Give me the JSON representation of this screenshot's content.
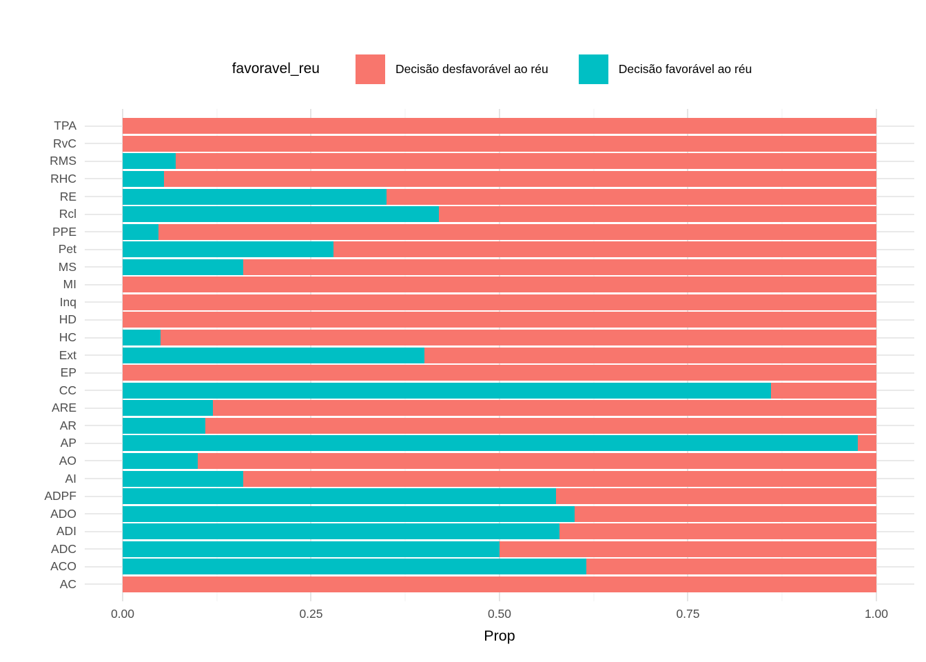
{
  "chart_data": {
    "type": "bar",
    "orientation": "horizontal",
    "stacked": true,
    "stack_is_proportion": true,
    "title": "",
    "xlabel": "Prop",
    "ylabel": "",
    "xlim": [
      0,
      1
    ],
    "grid": "on",
    "x_ticks": {
      "labels": [
        "0.00",
        "0.25",
        "0.50",
        "0.75",
        "1.00"
      ],
      "values": [
        0,
        0.25,
        0.5,
        0.75,
        1.0
      ]
    },
    "legend": {
      "title": "favoravel_reu",
      "position": "top",
      "entries": [
        {
          "label": "Decisão desfavorável ao réu",
          "color": "#F8766D"
        },
        {
          "label": "Decisão favorável ao réu",
          "color": "#00BFC4"
        }
      ]
    },
    "categories": [
      "TPA",
      "RvC",
      "RMS",
      "RHC",
      "RE",
      "Rcl",
      "PPE",
      "Pet",
      "MS",
      "MI",
      "Inq",
      "HD",
      "HC",
      "Ext",
      "EP",
      "CC",
      "ARE",
      "AR",
      "AP",
      "AO",
      "AI",
      "ADPF",
      "ADO",
      "ADI",
      "ADC",
      "ACO",
      "AC"
    ],
    "series": [
      {
        "name": "Decisão favorável ao réu",
        "color": "#00BFC4",
        "values": [
          0,
          0,
          0.07,
          0.055,
          0.35,
          0.42,
          0.048,
          0.28,
          0.16,
          0,
          0,
          0,
          0.05,
          0.4,
          0,
          0.86,
          0.12,
          0.11,
          0.975,
          0.1,
          0.16,
          0.575,
          0.6,
          0.58,
          0.5,
          0.615,
          0
        ]
      },
      {
        "name": "Decisão desfavorável ao réu",
        "color": "#F8766D",
        "values": [
          1,
          1,
          0.93,
          0.945,
          0.65,
          0.58,
          0.952,
          0.72,
          0.84,
          1,
          1,
          1,
          0.95,
          0.6,
          1,
          0.14,
          0.88,
          0.89,
          0.025,
          0.9,
          0.84,
          0.425,
          0.4,
          0.42,
          0.5,
          0.385,
          1
        ]
      }
    ]
  }
}
